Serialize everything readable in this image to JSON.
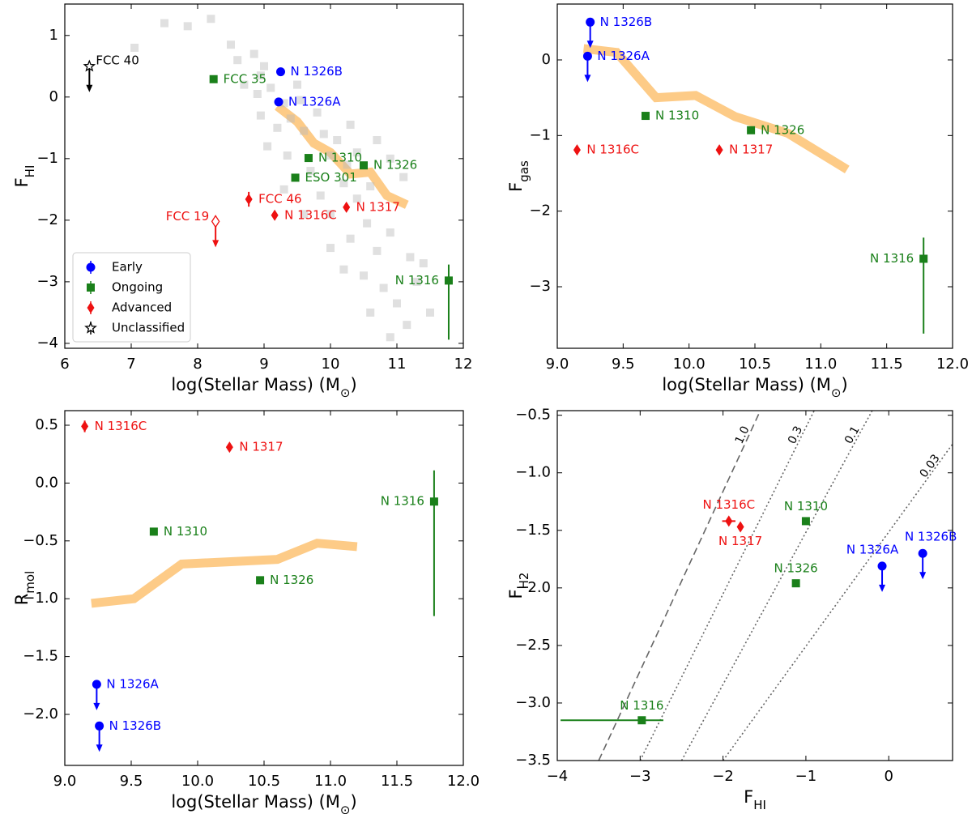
{
  "chart_data": [
    {
      "type": "scatter",
      "xlim": [
        6,
        12
      ],
      "ylim": [
        -4.08,
        1.51
      ],
      "xticks": [
        6,
        7,
        8,
        9,
        10,
        11,
        12
      ],
      "yticks": [
        {
          "value": -4,
          "label": "−4"
        },
        {
          "value": -3,
          "label": "−3"
        },
        {
          "value": -2,
          "label": "−2"
        },
        {
          "value": -1,
          "label": "−1"
        },
        0,
        1
      ],
      "xlabel": {
        "text": "log(Stellar Mass) (M",
        "sub": "⊙",
        "tail": ")"
      },
      "ylabel": {
        "text": "F",
        "sub": "HI"
      },
      "legend": "lower left",
      "band": {
        "color": "#fdc57a",
        "x": [
          9.2,
          9.5,
          9.75,
          10.0,
          10.3,
          10.6,
          10.85,
          11.15
        ],
        "y": [
          -0.15,
          -0.4,
          -0.75,
          -0.9,
          -1.25,
          -1.22,
          -1.6,
          -1.75
        ]
      },
      "series": [
        {
          "color": "#bbbbbb",
          "alpha": 0.45,
          "marker": "square",
          "x": [
            7.05,
            7.5,
            7.85,
            8.2,
            8.5,
            8.6,
            8.85,
            9.0,
            8.95,
            8.7,
            8.9,
            9.1,
            9.3,
            9.5,
            9.4,
            9.2,
            9.6,
            9.8,
            9.9,
            9.05,
            9.35,
            9.7,
            10.0,
            10.1,
            10.3,
            10.4,
            10.2,
            9.85,
            10.0,
            10.4,
            10.6,
            10.7,
            10.9,
            11.1,
            10.55,
            10.3,
            10.0,
            10.7,
            10.9,
            11.2,
            10.5,
            10.8,
            11.0,
            11.3,
            10.6,
            11.15,
            10.9,
            11.4,
            11.5,
            10.2,
            9.6,
            9.3,
            8.95,
            9.55,
            10.25
          ],
          "values": [
            0.8,
            1.2,
            1.15,
            1.27,
            0.85,
            0.6,
            0.7,
            0.5,
            0.35,
            0.2,
            0.05,
            0.15,
            -0.1,
            0.2,
            -0.35,
            -0.5,
            -0.55,
            -0.25,
            -0.6,
            -0.8,
            -0.95,
            -1.2,
            -0.95,
            -0.7,
            -0.45,
            -0.9,
            -1.4,
            -1.6,
            -1.9,
            -1.65,
            -1.45,
            -0.7,
            -1.0,
            -1.3,
            -2.05,
            -2.3,
            -2.45,
            -2.5,
            -2.2,
            -2.6,
            -2.9,
            -3.1,
            -3.35,
            -3.0,
            -3.5,
            -3.7,
            -3.9,
            -2.7,
            -3.5,
            -2.8,
            -1.9,
            -1.5,
            -0.3,
            -0.05,
            -1.1
          ]
        },
        {
          "name": "Early",
          "color": "#0000ff",
          "marker": "circle",
          "labels": [
            "N 1326B",
            "N 1326A"
          ],
          "x": [
            9.25,
            9.22
          ],
          "values": [
            0.41,
            -0.08
          ]
        },
        {
          "name": "Ongoing",
          "color": "#1a801a",
          "marker": "square",
          "labels": [
            "FCC 35",
            "N 1310",
            "ESO 301",
            "N 1326",
            "N 1316"
          ],
          "x": [
            8.24,
            9.67,
            9.47,
            10.5,
            11.78
          ],
          "values": [
            0.29,
            -0.99,
            -1.31,
            -1.11,
            -2.98
          ],
          "yerr": [
            null,
            null,
            null,
            null,
            [
              0.96,
              0.26
            ]
          ]
        },
        {
          "name": "Advanced",
          "color": "#ee1111",
          "marker": "diamond",
          "labels": [
            "FCC 46",
            "N 1316C",
            "N 1317",
            "FCC 19"
          ],
          "x": [
            8.77,
            9.16,
            10.24,
            8.27
          ],
          "values": [
            -1.66,
            -1.92,
            -1.79,
            -2.02
          ],
          "yerr": [
            [
              0.12,
              0.12
            ],
            null,
            null,
            null
          ],
          "upper_limit": [
            false,
            false,
            false,
            true
          ],
          "hollow": [
            false,
            false,
            false,
            true
          ]
        },
        {
          "name": "Unclassified",
          "color": "#000000",
          "marker": "star",
          "labels": [
            "FCC 40"
          ],
          "x": [
            6.37
          ],
          "values": [
            0.5
          ],
          "upper_limit": [
            true
          ],
          "hollow": [
            true
          ]
        }
      ]
    },
    {
      "type": "scatter",
      "xlim": [
        9,
        12
      ],
      "ylim": [
        -3.814,
        0.739
      ],
      "xticks": [
        {
          "value": 9,
          "label": "9.0"
        },
        9.5,
        {
          "value": 10,
          "label": "10.0"
        },
        10.5,
        {
          "value": 11,
          "label": "11.0"
        },
        11.5,
        {
          "value": 12,
          "label": "12.0"
        }
      ],
      "yticks": [
        {
          "value": -3,
          "label": "−3"
        },
        {
          "value": -2,
          "label": "−2"
        },
        {
          "value": -1,
          "label": "−1"
        },
        0
      ],
      "xlabel": {
        "text": "log(Stellar Mass) (M",
        "sub": "⊙",
        "tail": ")"
      },
      "ylabel": {
        "text": "F",
        "sub": "gas"
      },
      "band": {
        "color": "#fdc57a",
        "x": [
          9.2,
          9.45,
          9.75,
          10.05,
          10.35,
          10.75,
          11.2
        ],
        "y": [
          0.15,
          0.1,
          -0.5,
          -0.47,
          -0.75,
          -0.97,
          -1.45
        ]
      },
      "series": [
        {
          "color": "#0000ff",
          "marker": "circle",
          "labels": [
            "N 1326B",
            "N 1326A"
          ],
          "x": [
            9.25,
            9.23
          ],
          "values": [
            0.5,
            0.05
          ],
          "upper_limit": [
            true,
            true
          ]
        },
        {
          "color": "#1a801a",
          "marker": "square",
          "labels": [
            "N 1310",
            "N 1326",
            "N 1316"
          ],
          "x": [
            9.67,
            10.47,
            11.78
          ],
          "values": [
            -0.74,
            -0.93,
            -2.63
          ],
          "yerr": [
            null,
            null,
            [
              0.99,
              0.28
            ]
          ]
        },
        {
          "color": "#ee1111",
          "marker": "diamond",
          "labels": [
            "N 1316C",
            "N 1317"
          ],
          "x": [
            9.15,
            10.23
          ],
          "values": [
            -1.19,
            -1.19
          ]
        }
      ]
    },
    {
      "type": "scatter",
      "xlim": [
        9,
        12
      ],
      "ylim": [
        -2.441,
        0.626
      ],
      "xticks": [
        {
          "value": 9,
          "label": "9.0"
        },
        9.5,
        {
          "value": 10,
          "label": "10.0"
        },
        10.5,
        {
          "value": 11,
          "label": "11.0"
        },
        11.5,
        {
          "value": 12,
          "label": "12.0"
        }
      ],
      "yticks": [
        {
          "value": -2,
          "label": "−2.0"
        },
        {
          "value": -1.5,
          "label": "−1.5"
        },
        {
          "value": -1,
          "label": "−1.0"
        },
        {
          "value": -0.5,
          "label": "−0.5"
        },
        {
          "value": 0,
          "label": "0.0"
        },
        0.5
      ],
      "xlabel": {
        "text": "log(Stellar Mass) (M",
        "sub": "⊙",
        "tail": ")"
      },
      "ylabel": {
        "text": "R",
        "sub": "mol"
      },
      "band": {
        "color": "#fdc57a",
        "x": [
          9.2,
          9.52,
          9.88,
          10.25,
          10.6,
          10.9,
          11.2
        ],
        "y": [
          -1.04,
          -1.0,
          -0.7,
          -0.68,
          -0.66,
          -0.52,
          -0.55
        ]
      },
      "series": [
        {
          "color": "#ee1111",
          "marker": "diamond",
          "labels": [
            "N 1316C",
            "N 1317"
          ],
          "x": [
            9.15,
            10.24
          ],
          "values": [
            0.49,
            0.31
          ],
          "yerr": [
            [
              0.05,
              0.05
            ],
            null
          ]
        },
        {
          "color": "#1a801a",
          "marker": "square",
          "labels": [
            "N 1310",
            "N 1326",
            "N 1316"
          ],
          "x": [
            9.67,
            10.47,
            11.78
          ],
          "values": [
            -0.42,
            -0.84,
            -0.16
          ],
          "yerr": [
            null,
            null,
            [
              0.99,
              0.27
            ]
          ]
        },
        {
          "color": "#0000ff",
          "marker": "circle",
          "labels": [
            "N 1326A",
            "N 1326B"
          ],
          "x": [
            9.24,
            9.26
          ],
          "values": [
            -1.74,
            -2.1
          ],
          "upper_limit": [
            true,
            true
          ]
        }
      ]
    },
    {
      "type": "scatter",
      "xlim": [
        -4,
        0.77
      ],
      "ylim": [
        -3.5,
        -0.46
      ],
      "xticks": [
        {
          "value": -4,
          "label": "−4"
        },
        {
          "value": -3,
          "label": "−3"
        },
        {
          "value": -2,
          "label": "−2"
        },
        {
          "value": -1,
          "label": "−1"
        },
        0
      ],
      "yticks": [
        {
          "value": -3.5,
          "label": "−3.5"
        },
        {
          "value": -3,
          "label": "−3.0"
        },
        {
          "value": -2.5,
          "label": "−2.5"
        },
        {
          "value": -2,
          "label": "−2.0"
        },
        {
          "value": -1.5,
          "label": "−1.5"
        },
        {
          "value": -1,
          "label": "−1.0"
        },
        {
          "value": -0.5,
          "label": "−0.5"
        }
      ],
      "xlabel": {
        "text": "F",
        "sub": "HI"
      },
      "ylabel": {
        "text": "F",
        "sub": "H2"
      },
      "ratio_lines": [
        {
          "label": "1.0",
          "style": "dashed",
          "x": [
            -3.5,
            -1.55
          ],
          "y": [
            -3.5,
            -0.46
          ]
        },
        {
          "label": "0.3",
          "style": "dotted",
          "x": [
            -3.0,
            -0.9
          ],
          "y": [
            -3.5,
            -0.46
          ]
        },
        {
          "label": "0.1",
          "style": "dotted",
          "x": [
            -2.5,
            -0.2
          ],
          "y": [
            -3.5,
            -0.46
          ]
        },
        {
          "label": "0.03",
          "style": "dotted",
          "x": [
            -2.0,
            0.77
          ],
          "y": [
            -3.5,
            -0.75
          ]
        }
      ],
      "series": [
        {
          "color": "#ee1111",
          "marker": "diamond",
          "labels": [
            "N 1316C",
            "N 1317"
          ],
          "x": [
            -1.93,
            -1.79
          ],
          "values": [
            -1.42,
            -1.47
          ],
          "xerr": [
            [
              0.08,
              0.08
            ],
            null
          ]
        },
        {
          "color": "#1a801a",
          "marker": "square",
          "labels": [
            "N 1310",
            "N 1326",
            "N 1316"
          ],
          "x": [
            -1.0,
            -1.12,
            -2.98
          ],
          "values": [
            -1.42,
            -1.96,
            -3.15
          ],
          "xerr": [
            null,
            null,
            [
              0.98,
              0.26
            ]
          ]
        },
        {
          "color": "#0000ff",
          "marker": "circle",
          "labels": [
            "N 1326A",
            "N 1326B"
          ],
          "x": [
            -0.08,
            0.41
          ],
          "values": [
            -1.81,
            -1.7
          ],
          "upper_limit": [
            true,
            true
          ]
        }
      ]
    }
  ]
}
